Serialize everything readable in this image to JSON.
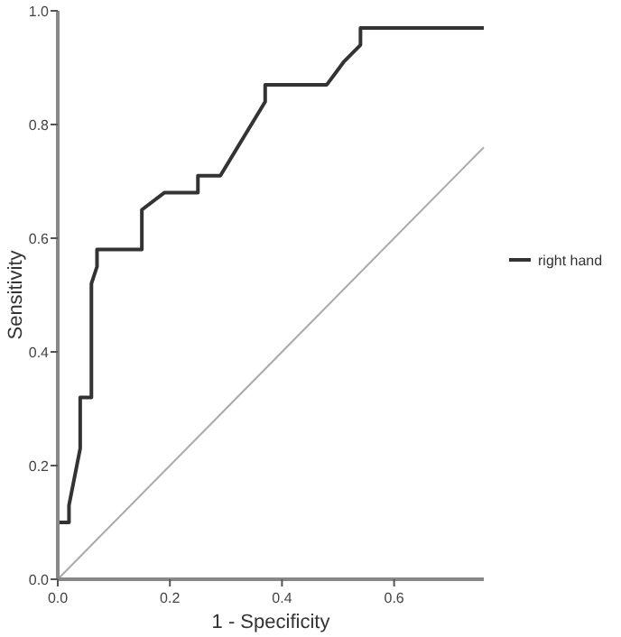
{
  "chart_data": {
    "type": "line",
    "xlabel": "1 - Specificity",
    "ylabel": "Sensitivity",
    "xlim": [
      0,
      0.76
    ],
    "ylim": [
      0,
      1
    ],
    "xticks": [
      {
        "value": 0,
        "label": "0.0"
      },
      {
        "value": 0.2,
        "label": "0.2"
      },
      {
        "value": 0.4,
        "label": "0.4"
      },
      {
        "value": 0.6,
        "label": "0.6"
      }
    ],
    "yticks": [
      {
        "value": 0,
        "label": "0.0"
      },
      {
        "value": 0.2,
        "label": "0.2"
      },
      {
        "value": 0.4,
        "label": "0.4"
      },
      {
        "value": 0.6,
        "label": "0.6"
      },
      {
        "value": 0.8,
        "label": "0.8"
      },
      {
        "value": 1,
        "label": "1.0"
      }
    ],
    "grid": false,
    "legend": "right",
    "marker": "none",
    "line_style": "solid",
    "series": [
      {
        "name": "right hand",
        "color": "#333333",
        "x": [
          0,
          0,
          0.02,
          0.02,
          0.04,
          0.04,
          0.06,
          0.06,
          0.07,
          0.07,
          0.15,
          0.15,
          0.19,
          0.25,
          0.25,
          0.29,
          0.37,
          0.37,
          0.48,
          0.51,
          0.54,
          0.54,
          0.76
        ],
        "values": [
          0,
          0.1,
          0.1,
          0.13,
          0.23,
          0.32,
          0.32,
          0.52,
          0.55,
          0.58,
          0.58,
          0.65,
          0.68,
          0.68,
          0.71,
          0.71,
          0.84,
          0.87,
          0.87,
          0.91,
          0.94,
          0.97,
          0.97
        ]
      },
      {
        "color": "#aaaaaa",
        "x": [
          0,
          0.76
        ],
        "values": [
          0,
          0.76
        ]
      }
    ]
  }
}
